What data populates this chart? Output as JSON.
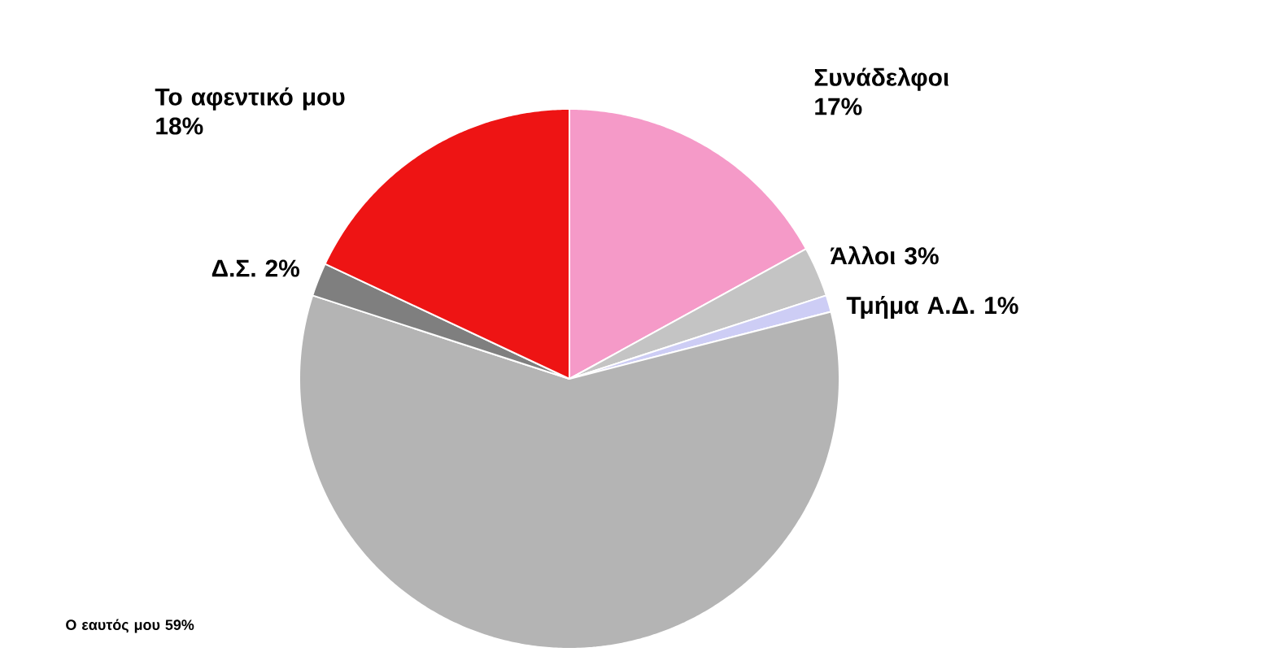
{
  "chart_data": {
    "type": "pie",
    "categories": [
      "Συνάδελφοι",
      "Άλλοι",
      "Τμήμα Α.Δ.",
      "Ο εαυτός μου",
      "Δ.Σ.",
      "Το αφεντικό μου"
    ],
    "values": [
      17,
      3,
      1,
      59,
      2,
      18
    ],
    "value_labels": [
      "17%",
      "3%",
      "1%",
      "59%",
      "2%",
      "18%"
    ],
    "colors": [
      "#f59ac8",
      "#c4c4c4",
      "#cdcdf5",
      "#b4b4b4",
      "#7f7f7f",
      "#ee1414"
    ]
  }
}
